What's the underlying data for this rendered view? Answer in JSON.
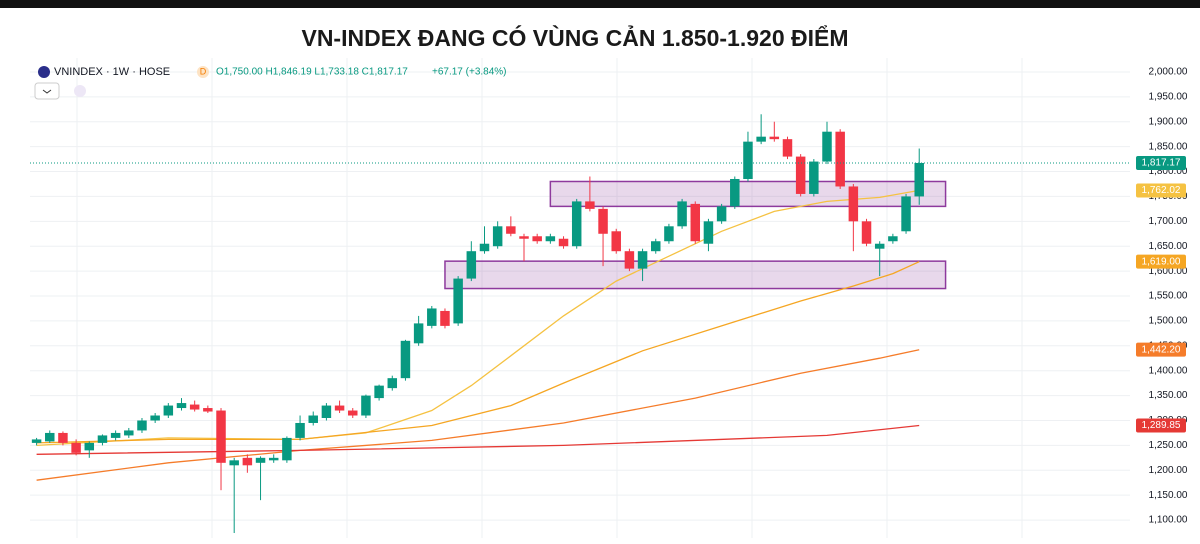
{
  "chart_data": {
    "type": "candlestick",
    "title": "VN-INDEX ĐANG CÓ VÙNG CẢN 1.850-1.920 ĐIỂM",
    "symbol": "VNINDEX · 1W · HOSE",
    "status": "D",
    "ohlc_text": "O1,750.00 H1,846.19 L1,733.18 C1,817.17",
    "change_text": "+67.17 (+3.84%)",
    "up_color": "#089981",
    "down_color": "#f23645",
    "open": [
      1255,
      1258,
      1275,
      1255,
      1240,
      1255,
      1265,
      1270,
      1280,
      1300,
      1310,
      1325,
      1332,
      1325,
      1320,
      1210,
      1225,
      1215,
      1220,
      1220,
      1265,
      1295,
      1305,
      1330,
      1320,
      1310,
      1345,
      1365,
      1385,
      1455,
      1490,
      1520,
      1495,
      1585,
      1640,
      1650,
      1690,
      1670,
      1670,
      1660,
      1665,
      1650,
      1740,
      1725,
      1680,
      1640,
      1605,
      1640,
      1660,
      1690,
      1735,
      1655,
      1700,
      1730,
      1785,
      1860,
      1870,
      1865,
      1830,
      1755,
      1820,
      1880,
      1770,
      1700,
      1645,
      1660,
      1680,
      1750
    ],
    "high": [
      1265,
      1280,
      1278,
      1262,
      1258,
      1272,
      1280,
      1285,
      1305,
      1315,
      1335,
      1345,
      1340,
      1330,
      1325,
      1225,
      1232,
      1228,
      1232,
      1268,
      1310,
      1318,
      1335,
      1340,
      1325,
      1352,
      1372,
      1390,
      1462,
      1510,
      1530,
      1525,
      1590,
      1660,
      1690,
      1700,
      1710,
      1675,
      1675,
      1675,
      1670,
      1745,
      1790,
      1730,
      1685,
      1645,
      1645,
      1665,
      1695,
      1745,
      1740,
      1705,
      1735,
      1790,
      1880,
      1915,
      1900,
      1870,
      1835,
      1825,
      1900,
      1885,
      1775,
      1705,
      1660,
      1675,
      1755,
      1846.19
    ],
    "low": [
      1250,
      1255,
      1250,
      1230,
      1225,
      1250,
      1260,
      1265,
      1275,
      1295,
      1305,
      1320,
      1318,
      1315,
      1160,
      1074,
      1195,
      1140,
      1215,
      1215,
      1260,
      1290,
      1300,
      1315,
      1305,
      1305,
      1340,
      1360,
      1380,
      1450,
      1485,
      1485,
      1490,
      1580,
      1635,
      1645,
      1670,
      1620,
      1655,
      1655,
      1645,
      1645,
      1720,
      1610,
      1635,
      1600,
      1580,
      1635,
      1655,
      1685,
      1655,
      1640,
      1695,
      1725,
      1780,
      1855,
      1860,
      1825,
      1750,
      1750,
      1815,
      1765,
      1640,
      1650,
      1590,
      1655,
      1675,
      1733.18
    ],
    "close": [
      1262,
      1275,
      1255,
      1235,
      1255,
      1270,
      1275,
      1280,
      1300,
      1310,
      1330,
      1335,
      1322,
      1318,
      1215,
      1220,
      1210,
      1225,
      1225,
      1265,
      1295,
      1310,
      1330,
      1320,
      1310,
      1350,
      1370,
      1385,
      1460,
      1495,
      1525,
      1490,
      1585,
      1640,
      1655,
      1690,
      1675,
      1665,
      1660,
      1670,
      1650,
      1740,
      1725,
      1675,
      1640,
      1605,
      1640,
      1660,
      1690,
      1740,
      1660,
      1700,
      1730,
      1785,
      1860,
      1870,
      1865,
      1830,
      1755,
      1820,
      1880,
      1770,
      1700,
      1655,
      1655,
      1670,
      1750,
      1817.17
    ],
    "close_label": "1,817.17",
    "close_color": "#089981",
    "series": [
      {
        "color": "#f5c242",
        "x": [
          0,
          10,
          20,
          25,
          30,
          33,
          36,
          40,
          44,
          48,
          52,
          56,
          60,
          64,
          67
        ],
        "values": [
          1250,
          1265,
          1262,
          1275,
          1320,
          1370,
          1430,
          1510,
          1580,
          1630,
          1680,
          1720,
          1740,
          1748,
          1762.02
        ],
        "price_label": "1,762.02"
      },
      {
        "color": "#f5a623",
        "x": [
          0,
          10,
          20,
          30,
          36,
          40,
          46,
          52,
          58,
          62,
          65,
          67
        ],
        "values": [
          1255,
          1262,
          1262,
          1290,
          1330,
          1375,
          1440,
          1490,
          1540,
          1570,
          1595,
          1619
        ],
        "price_label": "1,619.00"
      },
      {
        "color": "#f57c2a",
        "x": [
          0,
          10,
          20,
          30,
          40,
          50,
          58,
          64,
          67
        ],
        "values": [
          1180,
          1215,
          1240,
          1260,
          1295,
          1345,
          1395,
          1425,
          1442.2
        ],
        "price_label": "1,442.20"
      },
      {
        "color": "#e53935",
        "x": [
          0,
          20,
          40,
          60,
          67
        ],
        "values": [
          1232,
          1240,
          1250,
          1270,
          1289.85
        ],
        "price_label": "1,289.85"
      }
    ],
    "zones": [
      {
        "x": [
          39,
          69
        ],
        "y": [
          1730,
          1780
        ]
      },
      {
        "x": [
          31,
          69
        ],
        "y": [
          1565,
          1620
        ]
      }
    ],
    "zone_color": "#8e3a9d",
    "xlim": [
      -0.5,
      83
    ],
    "ylim": [
      1064,
      2028
    ],
    "yticks": [
      {
        "value": 1100,
        "label": "1,100.00"
      },
      {
        "value": 1150,
        "label": "1,150.00"
      },
      {
        "value": 1200,
        "label": "1,200.00"
      },
      {
        "value": 1250,
        "label": "1,250.00"
      },
      {
        "value": 1300,
        "label": "1,300.00"
      },
      {
        "value": 1350,
        "label": "1,350.00"
      },
      {
        "value": 1400,
        "label": "1,400.00"
      },
      {
        "value": 1450,
        "label": "1,450.00"
      },
      {
        "value": 1500,
        "label": "1,500.00"
      },
      {
        "value": 1550,
        "label": "1,550.00"
      },
      {
        "value": 1600,
        "label": "1,600.00"
      },
      {
        "value": 1650,
        "label": "1,650.00"
      },
      {
        "value": 1700,
        "label": "1,700.00"
      },
      {
        "value": 1750,
        "label": "1,750.00"
      },
      {
        "value": 1800,
        "label": "1,800.00"
      },
      {
        "value": 1850,
        "label": "1,850.00"
      },
      {
        "value": 1900,
        "label": "1,900.00"
      },
      {
        "value": 1950,
        "label": "1,950.00"
      },
      {
        "value": 2000,
        "label": "2,000.00"
      }
    ],
    "grid": true
  }
}
